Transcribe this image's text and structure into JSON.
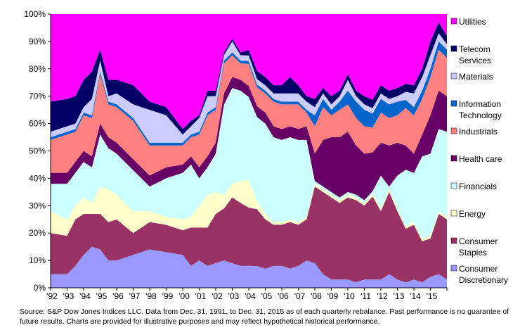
{
  "chart_data": {
    "type": "area",
    "stacked": true,
    "normalized": true,
    "title": "",
    "xlabel": "",
    "ylabel": "",
    "ylim": [
      0,
      100
    ],
    "yticks": [
      "0%",
      "10%",
      "20%",
      "30%",
      "40%",
      "50%",
      "60%",
      "70%",
      "80%",
      "90%",
      "100%"
    ],
    "xticks": [
      "'92",
      "'93",
      "'94",
      "'95",
      "'96",
      "'97",
      "'98",
      "'99",
      "'00",
      "'01",
      "'02",
      "'03",
      "'04",
      "'05",
      "'06",
      "'07",
      "'08",
      "'09",
      "'10",
      "'11",
      "'12",
      "'13",
      "'14",
      "'15"
    ],
    "x_start_year": 1992,
    "x_end_year": 2016,
    "legend_position": "right",
    "x": [
      1992.0,
      1993.0,
      1993.5,
      1994.0,
      1994.5,
      1995.0,
      1995.5,
      1996.0,
      1997.0,
      1998.0,
      1999.0,
      2000.0,
      2000.5,
      2001.0,
      2001.5,
      2002.0,
      2002.5,
      2003.0,
      2003.5,
      2004.0,
      2004.5,
      2005.0,
      2005.5,
      2006.0,
      2006.5,
      2007.0,
      2007.5,
      2008.0,
      2008.5,
      2009.0,
      2009.5,
      2010.0,
      2010.5,
      2011.0,
      2011.5,
      2012.0,
      2012.5,
      2013.0,
      2013.5,
      2014.0,
      2014.5,
      2015.0,
      2015.5,
      2016.0
    ],
    "series": [
      {
        "name": "Consumer Discretionary",
        "color": "#9999ff",
        "values": [
          5,
          5,
          8,
          12,
          15,
          14,
          10,
          10,
          12,
          14,
          13,
          12,
          8,
          10,
          8,
          9,
          10,
          9,
          8,
          8,
          8,
          7,
          8,
          8,
          7,
          8,
          10,
          9,
          5,
          3,
          3,
          3,
          2,
          3,
          3,
          3,
          5,
          3,
          2,
          3,
          2,
          4,
          5,
          3
        ]
      },
      {
        "name": "Consumer Staples",
        "color": "#993366",
        "values": [
          15,
          14,
          17,
          15,
          12,
          13,
          14,
          15,
          8,
          10,
          10,
          9,
          14,
          12,
          14,
          18,
          19,
          24,
          23,
          21,
          21,
          18,
          15,
          15,
          17,
          15,
          15,
          28,
          30,
          30,
          28,
          30,
          30,
          27,
          30,
          25,
          30,
          25,
          20,
          20,
          15,
          14,
          22,
          22
        ]
      },
      {
        "name": "Energy",
        "color": "#ffffcc",
        "values": [
          8,
          6,
          5,
          6,
          4,
          10,
          12,
          9,
          8,
          4,
          3,
          4,
          4,
          8,
          12,
          8,
          5,
          5,
          8,
          10,
          3,
          2,
          1,
          1,
          1,
          1,
          1,
          1,
          1,
          1,
          1,
          1,
          1,
          1,
          1,
          1,
          1,
          1,
          1,
          1,
          1,
          1,
          1,
          1
        ]
      },
      {
        "name": "Financials",
        "color": "#ccffff",
        "values": [
          10,
          13,
          12,
          13,
          13,
          19,
          15,
          15,
          15,
          9,
          14,
          17,
          19,
          10,
          10,
          14,
          33,
          35,
          33,
          30,
          31,
          33,
          31,
          30,
          30,
          30,
          28,
          1,
          1,
          1,
          1,
          1,
          1,
          1,
          1,
          12,
          1,
          12,
          21,
          18,
          30,
          30,
          30,
          31
        ]
      },
      {
        "name": "Health care",
        "color": "#660066",
        "values": [
          4,
          4,
          4,
          4,
          4,
          4,
          4,
          4,
          4,
          4,
          4,
          3,
          3,
          4,
          4,
          4,
          4,
          4,
          4,
          4,
          4,
          4,
          4,
          4,
          4,
          4,
          5,
          10,
          17,
          20,
          22,
          22,
          18,
          17,
          14,
          12,
          15,
          12,
          9,
          7,
          8,
          14,
          14,
          13
        ]
      },
      {
        "name": "Industrials",
        "color": "#ff8080",
        "values": [
          12,
          14,
          11,
          13,
          14,
          18,
          12,
          13,
          14,
          11,
          8,
          7,
          7,
          12,
          15,
          12,
          11,
          8,
          6,
          8,
          7,
          7,
          9,
          9,
          8,
          9,
          5,
          10,
          12,
          8,
          10,
          10,
          10,
          10,
          9,
          11,
          10,
          10,
          14,
          14,
          13,
          14,
          15,
          14
        ]
      },
      {
        "name": "Information Technology",
        "color": "#0066cc",
        "values": [
          1,
          1,
          1,
          1,
          1,
          1,
          1,
          1,
          1,
          1,
          1,
          1,
          1,
          1,
          1,
          1,
          1,
          1,
          1,
          1,
          1,
          1,
          1,
          1,
          1,
          1,
          1,
          4,
          3,
          2,
          3,
          5,
          6,
          6,
          5,
          5,
          5,
          5,
          3,
          3,
          3,
          3,
          3,
          3
        ]
      },
      {
        "name": "Materials",
        "color": "#ccccff",
        "values": [
          2,
          2,
          2,
          2,
          6,
          4,
          2,
          4,
          5,
          12,
          10,
          3,
          3,
          5,
          6,
          4,
          2,
          4,
          2,
          2,
          2,
          2,
          2,
          3,
          3,
          3,
          3,
          3,
          2,
          2,
          2,
          4,
          2,
          2,
          2,
          2,
          2,
          2,
          3,
          5,
          5,
          5,
          3,
          2
        ]
      },
      {
        "name": "Telecom Services",
        "color": "#000066",
        "values": [
          11,
          10,
          10,
          10,
          10,
          4,
          6,
          5,
          7,
          3,
          3,
          2,
          2,
          1,
          2,
          2,
          1,
          1,
          1,
          2,
          3,
          3,
          3,
          3,
          6,
          3,
          2,
          3,
          2,
          3,
          2,
          2,
          2,
          3,
          3,
          3,
          3,
          3,
          3,
          3,
          3,
          5,
          4,
          3
        ]
      },
      {
        "name": "Utilities",
        "color": "#ff00ff",
        "values": [
          32,
          31,
          30,
          24,
          21,
          13,
          24,
          24,
          26,
          32,
          34,
          42,
          39,
          37,
          28,
          28,
          14,
          9,
          14,
          13,
          21,
          23,
          26,
          26,
          23,
          26,
          30,
          31,
          27,
          30,
          28,
          22,
          28,
          30,
          31,
          26,
          28,
          27,
          26,
          26,
          20,
          10,
          3,
          8
        ]
      }
    ]
  },
  "source_note": "Source: S&P Dow Jones Indices LLC.  Data from Dec. 31, 1991, to Dec. 31, 2015 as of each quarterly rebalance.  Past performance is no guarantee of future results.  Charts are provided for illustrative purposes and may reflect hypothetical historical performance.",
  "legend": [
    {
      "label": "Utilities",
      "color": "#ff00ff"
    },
    {
      "label": "Telecom Services",
      "color": "#000066"
    },
    {
      "label": "Materials",
      "color": "#ccccff"
    },
    {
      "label": "Information Technology",
      "color": "#0066cc"
    },
    {
      "label": "Industrials",
      "color": "#ff8080"
    },
    {
      "label": "Health care",
      "color": "#660066"
    },
    {
      "label": "Financials",
      "color": "#ccffff"
    },
    {
      "label": "Energy",
      "color": "#ffffcc"
    },
    {
      "label": "Consumer Staples",
      "color": "#993366"
    },
    {
      "label": "Consumer Discretionary",
      "color": "#9999ff"
    }
  ]
}
